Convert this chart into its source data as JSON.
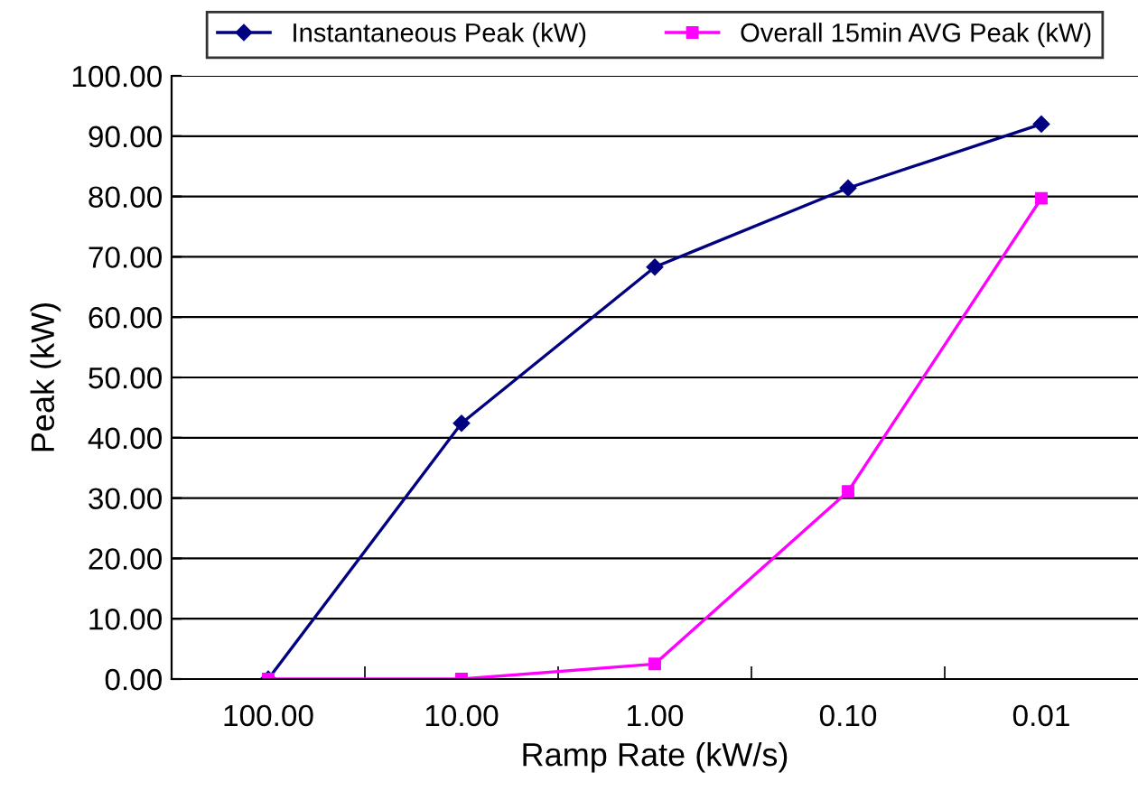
{
  "chart_data": {
    "type": "line",
    "xlabel": "Ramp Rate (kW/s)",
    "ylabel": "Peak (kW)",
    "categories": [
      "100.00",
      "10.00",
      "1.00",
      "0.10",
      "0.01"
    ],
    "series": [
      {
        "name": "Instantaneous Peak (kW)",
        "color": "#000080",
        "marker": "diamond",
        "values": [
          0,
          42.4,
          68.3,
          81.4,
          92.0
        ]
      },
      {
        "name": "Overall 15min AVG Peak (kW)",
        "color": "#ff00ff",
        "marker": "square",
        "values": [
          0,
          0,
          2.5,
          31.1,
          79.7
        ]
      }
    ],
    "ylim": [
      0,
      100
    ],
    "yticks": [
      {
        "value": 0,
        "label": "0.00"
      },
      {
        "value": 10,
        "label": "10.00"
      },
      {
        "value": 20,
        "label": "20.00"
      },
      {
        "value": 30,
        "label": "30.00"
      },
      {
        "value": 40,
        "label": "40.00"
      },
      {
        "value": 50,
        "label": "50.00"
      },
      {
        "value": 60,
        "label": "60.00"
      },
      {
        "value": 70,
        "label": "70.00"
      },
      {
        "value": 80,
        "label": "80.00"
      },
      {
        "value": 90,
        "label": "90.00"
      },
      {
        "value": 100,
        "label": "100.00"
      }
    ],
    "grid": "y",
    "legend": "top",
    "line_style": "solid"
  }
}
